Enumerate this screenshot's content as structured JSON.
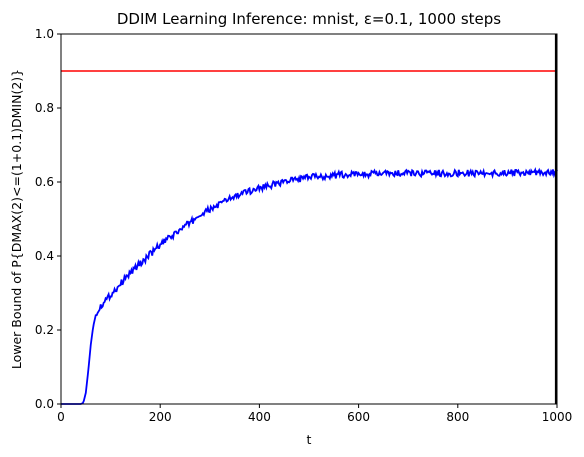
{
  "chart_data": {
    "type": "line",
    "title": "DDIM Learning Inference: mnist, ε=0.1, 1000 steps",
    "xlabel": "t",
    "ylabel": "Lower Bound of P{DMAX(2)<=(1+0.1)DMIN(2)}",
    "xlim": [
      0,
      1000
    ],
    "ylim": [
      0.0,
      1.0
    ],
    "xticks": [
      "0",
      "200",
      "400",
      "600",
      "800",
      "1000"
    ],
    "yticks": [
      "0.0",
      "0.2",
      "0.4",
      "0.6",
      "0.8",
      "1.0"
    ],
    "grid": false,
    "legend": "none",
    "reference_lines": [
      {
        "orientation": "horizontal",
        "y": 0.9,
        "color": "#ff0000"
      },
      {
        "orientation": "vertical",
        "x": 1000,
        "color": "#000000"
      }
    ],
    "series": [
      {
        "color": "#0000ff",
        "x": [
          0,
          40,
          45,
          50,
          55,
          60,
          65,
          70,
          75,
          80,
          90,
          100,
          120,
          140,
          160,
          180,
          200,
          220,
          240,
          260,
          280,
          300,
          320,
          340,
          360,
          380,
          400,
          420,
          440,
          460,
          480,
          500,
          520,
          540,
          560,
          580,
          600,
          640,
          680,
          720,
          760,
          800,
          840,
          880,
          920,
          960,
          1000
        ],
        "y": [
          0.0,
          0.0,
          0.003,
          0.03,
          0.09,
          0.16,
          0.21,
          0.24,
          0.255,
          0.265,
          0.28,
          0.295,
          0.325,
          0.355,
          0.38,
          0.405,
          0.43,
          0.45,
          0.47,
          0.49,
          0.51,
          0.525,
          0.54,
          0.555,
          0.565,
          0.575,
          0.585,
          0.59,
          0.598,
          0.603,
          0.608,
          0.612,
          0.615,
          0.617,
          0.619,
          0.62,
          0.621,
          0.622,
          0.623,
          0.623,
          0.624,
          0.624,
          0.624,
          0.624,
          0.625,
          0.625,
          0.625
        ]
      }
    ]
  }
}
